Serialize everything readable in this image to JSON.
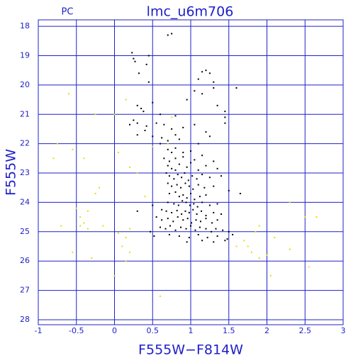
{
  "chart_data": {
    "type": "scatter",
    "title": "lmc_u6m706",
    "subtitle": "PC",
    "x_label": "F555W−F814W",
    "y_label": "F555W",
    "xlim": [
      -1,
      3
    ],
    "ylim": [
      28.17,
      17.78
    ],
    "xticks": [
      -1,
      -0.5,
      0,
      0.5,
      1,
      1.5,
      2,
      2.5,
      3
    ],
    "yticks": [
      18,
      19,
      20,
      21,
      22,
      23,
      24,
      25,
      26,
      27,
      28
    ],
    "grid": true,
    "series": [
      {
        "color": "#000000",
        "x": [
          0.7,
          0.75,
          0.23,
          0.25,
          0.45,
          0.42,
          0.27,
          0.32,
          1.15,
          1.2,
          1.25,
          1.1,
          0.45,
          1.3,
          1.3,
          1.6,
          1.05,
          1.15,
          0.95,
          0.5,
          0.3,
          1.35,
          0.35,
          0.38,
          0.6,
          1.45,
          1.45,
          0.8,
          0.25,
          0.3,
          0.2,
          0.42,
          0.55,
          0.65,
          0.75,
          0.9,
          1.05,
          1.45,
          0.4,
          0.3,
          0.5,
          0.62,
          0.8,
          1.2,
          1.25,
          0.7,
          0.85,
          0.6,
          1.1,
          0.7,
          0.75,
          0.8,
          0.9,
          1.0,
          0.65,
          0.72,
          0.8,
          0.9,
          1.05,
          1.15,
          1.3,
          0.7,
          0.75,
          0.8,
          0.85,
          0.95,
          1.0,
          1.1,
          1.2,
          1.35,
          0.68,
          0.72,
          0.78,
          0.83,
          0.88,
          0.92,
          0.97,
          1.02,
          1.08,
          1.15,
          1.25,
          1.4,
          0.7,
          0.75,
          0.82,
          0.87,
          0.93,
          0.98,
          1.03,
          1.1,
          1.18,
          1.3,
          1.5,
          1.65,
          0.72,
          0.8,
          0.85,
          0.9,
          0.95,
          1.0,
          1.05,
          1.12,
          1.2,
          0.7,
          0.78,
          0.84,
          0.89,
          0.94,
          0.99,
          1.04,
          1.09,
          1.15,
          1.25,
          1.35,
          0.5,
          0.3,
          0.62,
          0.68,
          0.75,
          0.82,
          0.88,
          0.93,
          0.98,
          1.03,
          1.08,
          1.14,
          1.2,
          1.3,
          1.4,
          0.55,
          0.62,
          0.7,
          0.77,
          0.83,
          0.9,
          0.96,
          1.01,
          1.07,
          1.13,
          1.2,
          1.28,
          1.35,
          0.6,
          0.67,
          0.73,
          0.8,
          0.87,
          0.94,
          1.0,
          1.06,
          1.12,
          1.2,
          1.27,
          1.33,
          1.42,
          1.5,
          1.55,
          0.47,
          0.52,
          0.72,
          0.85,
          0.98,
          1.1,
          1.22,
          1.35,
          1.48,
          0.95,
          1.15,
          1.3,
          1.45
        ],
        "values": [
          18.3,
          18.25,
          18.9,
          19.1,
          19.0,
          19.3,
          19.2,
          19.6,
          19.55,
          19.5,
          19.6,
          19.8,
          19.9,
          19.9,
          20.1,
          20.1,
          20.2,
          20.3,
          20.5,
          20.6,
          20.7,
          20.7,
          20.8,
          20.9,
          21.0,
          20.9,
          21.1,
          21.05,
          21.2,
          21.3,
          21.35,
          21.4,
          21.3,
          21.35,
          21.5,
          21.45,
          21.35,
          21.3,
          21.55,
          21.7,
          21.75,
          21.8,
          21.7,
          21.6,
          21.75,
          21.9,
          21.85,
          22.0,
          22.0,
          22.2,
          22.3,
          22.15,
          22.3,
          22.25,
          22.5,
          22.6,
          22.5,
          22.45,
          22.55,
          22.4,
          22.6,
          22.75,
          22.85,
          22.9,
          22.7,
          22.8,
          22.65,
          22.9,
          22.75,
          22.85,
          23.0,
          23.1,
          23.2,
          23.05,
          23.15,
          23.0,
          23.25,
          23.1,
          23.2,
          23.05,
          23.15,
          23.1,
          23.35,
          23.45,
          23.4,
          23.5,
          23.35,
          23.45,
          23.55,
          23.4,
          23.5,
          23.45,
          23.6,
          23.7,
          23.7,
          23.65,
          23.8,
          23.75,
          23.85,
          23.7,
          23.9,
          23.8,
          23.75,
          24.0,
          24.05,
          24.1,
          23.95,
          24.0,
          24.1,
          24.05,
          24.15,
          24.0,
          24.1,
          24.05,
          24.1,
          24.3,
          24.25,
          24.3,
          24.35,
          24.28,
          24.4,
          24.3,
          24.35,
          24.25,
          24.4,
          24.3,
          24.45,
          24.35,
          24.4,
          24.5,
          24.6,
          24.55,
          24.65,
          24.5,
          24.6,
          24.55,
          24.7,
          24.6,
          24.65,
          24.55,
          24.7,
          24.6,
          24.85,
          24.9,
          24.8,
          24.95,
          24.85,
          24.9,
          24.8,
          24.95,
          24.85,
          24.9,
          25.0,
          24.9,
          24.95,
          25.0,
          25.1,
          25.0,
          25.15,
          25.1,
          25.15,
          25.2,
          25.1,
          25.2,
          25.15,
          25.25,
          25.35,
          25.3,
          25.35,
          25.3
        ]
      },
      {
        "color": "#e6dc00",
        "x": [
          -0.6,
          -0.8,
          -0.75,
          -0.55,
          0.05,
          0.2,
          -0.4,
          0.0,
          0.15,
          0.4,
          0.3,
          0.5,
          -0.25,
          -0.2,
          -0.5,
          -0.45,
          -0.35,
          -0.4,
          -0.45,
          -0.7,
          -0.35,
          -0.15,
          0.05,
          0.15,
          0.1,
          0.2,
          0.15,
          -0.3,
          -0.55,
          0.0,
          0.6,
          0.2,
          0.7,
          1.7,
          1.6,
          1.8,
          1.9,
          2.0,
          2.05,
          1.75,
          1.9,
          2.3,
          2.3,
          2.5,
          2.55,
          2.65,
          2.1,
          1.85,
          0.75,
          -0.25
        ],
        "values": [
          20.3,
          22.5,
          22.0,
          22.2,
          22.3,
          22.8,
          22.5,
          21.0,
          20.5,
          23.8,
          23.0,
          22.1,
          23.7,
          23.5,
          24.2,
          24.5,
          24.3,
          24.7,
          24.8,
          24.8,
          24.9,
          24.8,
          25.05,
          25.2,
          25.5,
          25.7,
          26.0,
          25.9,
          25.7,
          26.5,
          27.2,
          24.9,
          22.0,
          25.3,
          25.5,
          25.7,
          25.9,
          25.8,
          26.5,
          25.5,
          24.8,
          24.0,
          25.6,
          24.5,
          26.2,
          24.5,
          25.2,
          25.0,
          21.1,
          21.0
        ]
      }
    ]
  }
}
